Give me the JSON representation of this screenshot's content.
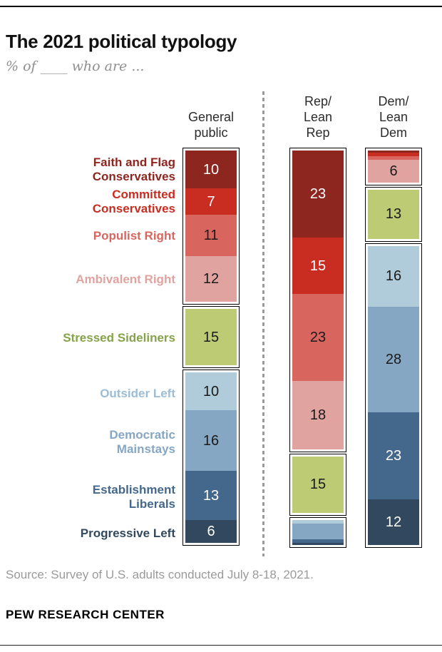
{
  "page": {
    "title": "The 2021 political typology",
    "subtitle": "% of ____ who are ...",
    "source": "Source: Survey of U.S. adults conducted July 8-18, 2021.",
    "brand": "PEW RESEARCH CENTER"
  },
  "chart_data": {
    "type": "stacked-bar",
    "unit": "%",
    "legend_position": "left-category-labels",
    "categories": [
      {
        "label": "Faith and Flag\nConservatives",
        "color": "#8e2620",
        "label_color": "#8e2620",
        "value_text_color": "#ffffff"
      },
      {
        "label": "Committed\nConservatives",
        "color": "#c92d21",
        "label_color": "#c92d21",
        "value_text_color": "#ffffff"
      },
      {
        "label": "Populist Right",
        "color": "#d9655f",
        "label_color": "#d9655f",
        "value_text_color": "#1a1a1a"
      },
      {
        "label": "Ambivalent Right",
        "color": "#e0a3a0",
        "label_color": "#e0a3a0",
        "value_text_color": "#1a1a1a"
      },
      {
        "label": "Stressed Sideliners",
        "color": "#bdcb74",
        "label_color": "#86a349",
        "value_text_color": "#1a1a1a"
      },
      {
        "label": "Outsider Left",
        "color": "#b0cbd9",
        "label_color": "#9dbdd5",
        "value_text_color": "#1a1a1a"
      },
      {
        "label": "Democratic\nMainstays",
        "color": "#85a7c3",
        "label_color": "#85a7c3",
        "value_text_color": "#1a1a1a"
      },
      {
        "label": "Establishment\nLiberals",
        "color": "#44688c",
        "label_color": "#44688c",
        "value_text_color": "#ffffff"
      },
      {
        "label": "Progressive Left",
        "color": "#32485e",
        "label_color": "#32485e",
        "value_text_color": "#ffffff"
      }
    ],
    "groups": [
      [
        0,
        1,
        2,
        3
      ],
      [
        4
      ],
      [
        5,
        6,
        7,
        8
      ]
    ],
    "series": [
      {
        "name": "General public",
        "header": "General\npublic",
        "values": [
          10,
          7,
          11,
          12,
          15,
          10,
          16,
          13,
          6
        ],
        "value_labels": [
          "10",
          "7",
          "11",
          "12",
          "15",
          "10",
          "16",
          "13",
          "6"
        ]
      },
      {
        "name": "Rep/Lean Rep",
        "header": "Rep/\nLean\nRep",
        "values": [
          23,
          15,
          23,
          18,
          15,
          1,
          4,
          1,
          0.5
        ],
        "value_labels": [
          "23",
          "15",
          "23",
          "18",
          "15",
          "",
          "",
          "",
          ""
        ]
      },
      {
        "name": "Dem/Lean Dem",
        "header": "Dem/\nLean\nDem",
        "values": [
          0.5,
          1,
          1,
          6,
          13,
          16,
          28,
          23,
          12
        ],
        "value_labels": [
          "",
          "",
          "",
          "6",
          "13",
          "16",
          "28",
          "23",
          "12"
        ]
      }
    ]
  }
}
